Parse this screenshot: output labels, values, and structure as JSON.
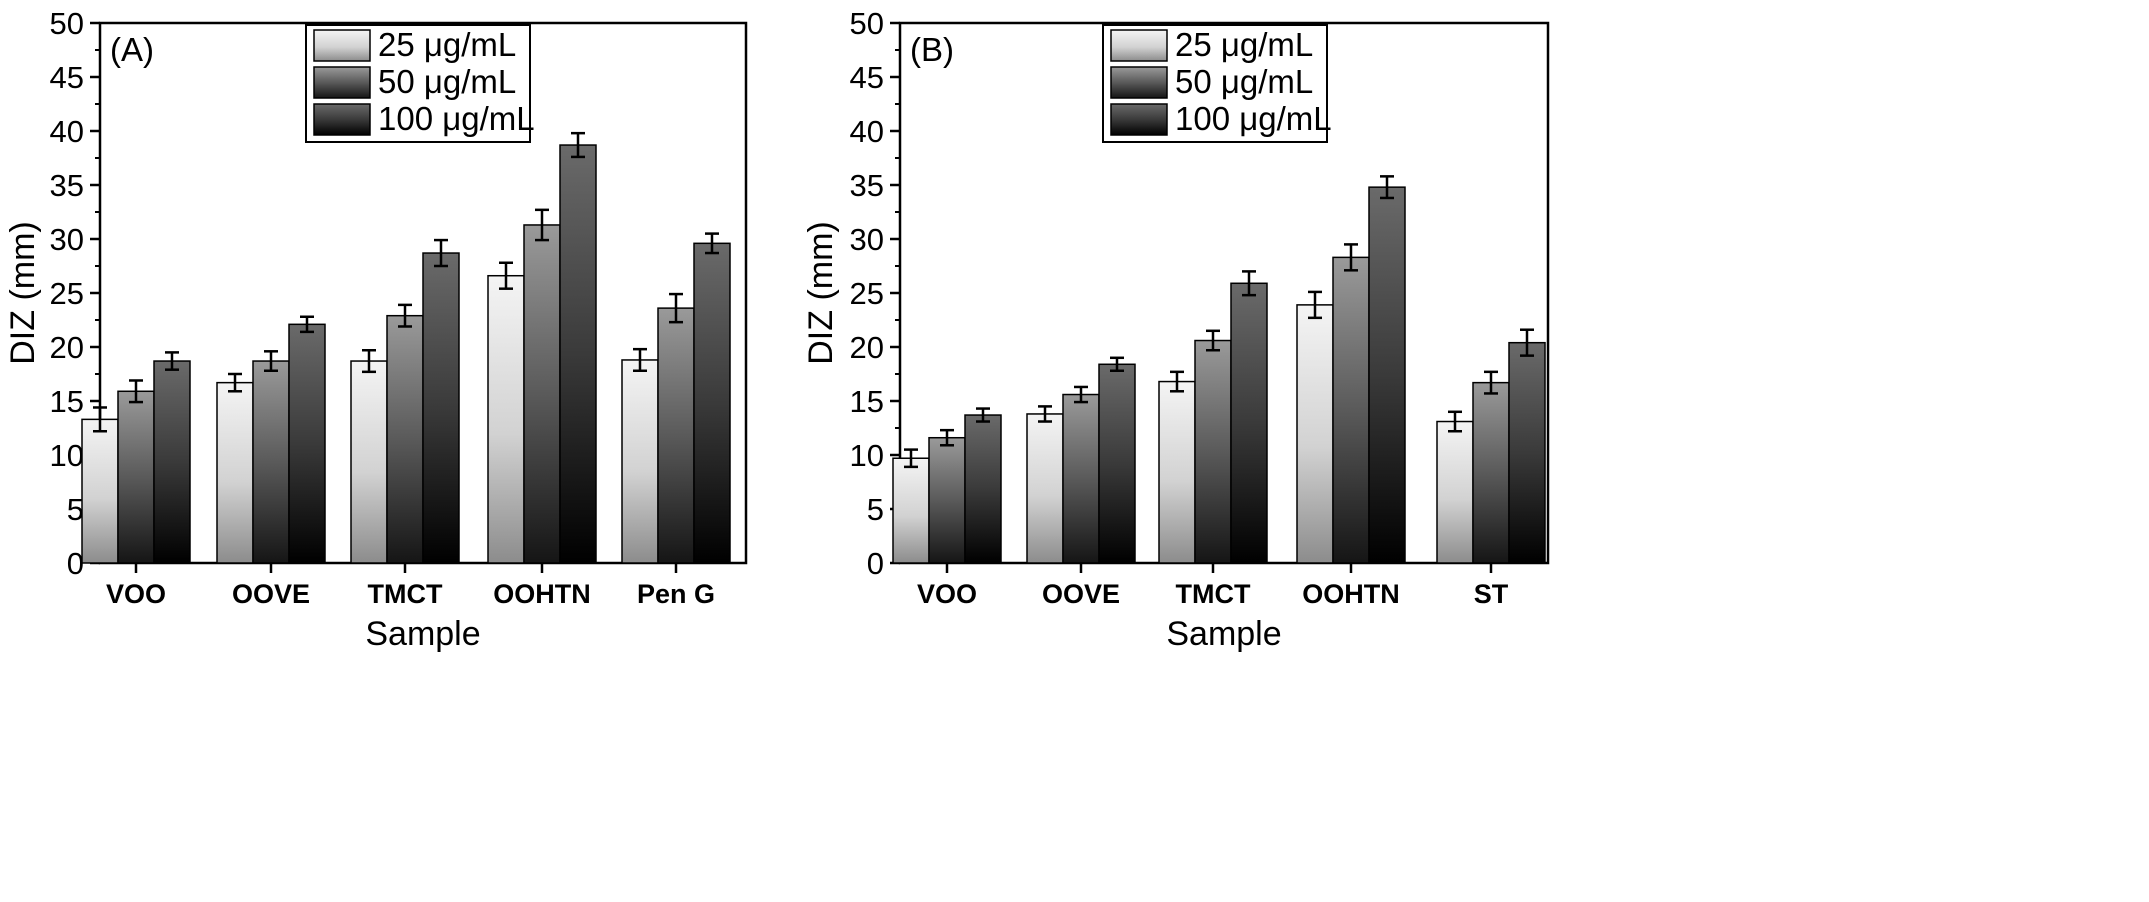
{
  "colors": {
    "axis": "#000000",
    "bar_light_top": "#f2f2f2",
    "bar_dark_bottom": "#000000"
  },
  "legend": [
    "25 μg/mL",
    "50 μg/mL",
    "100 μg/mL"
  ],
  "chart_data": [
    {
      "panel": "(A)",
      "type": "bar",
      "xlabel": "Sample",
      "ylabel": "DIZ (mm)",
      "ylim": [
        0,
        50
      ],
      "yticks": [
        0,
        5,
        10,
        15,
        20,
        25,
        30,
        35,
        40,
        45,
        50
      ],
      "categories": [
        "VOO",
        "OOVE",
        "TMCT",
        "OOHTN",
        "Pen G"
      ],
      "legend_position": "top-center",
      "series": [
        {
          "name": "25 μg/mL",
          "values": [
            13.3,
            16.7,
            18.7,
            26.6,
            18.8
          ],
          "errors": [
            1.1,
            0.8,
            1.0,
            1.2,
            1.0
          ]
        },
        {
          "name": "50 μg/mL",
          "values": [
            15.9,
            18.7,
            22.9,
            31.3,
            23.6
          ],
          "errors": [
            1.0,
            0.9,
            1.0,
            1.4,
            1.3
          ]
        },
        {
          "name": "100 μg/mL",
          "values": [
            18.7,
            22.1,
            28.7,
            38.7,
            29.6
          ],
          "errors": [
            0.8,
            0.7,
            1.2,
            1.1,
            0.9
          ]
        }
      ]
    },
    {
      "panel": "(B)",
      "type": "bar",
      "xlabel": "Sample",
      "ylabel": "DIZ (mm)",
      "ylim": [
        0,
        50
      ],
      "yticks": [
        0,
        5,
        10,
        15,
        20,
        25,
        30,
        35,
        40,
        45,
        50
      ],
      "categories": [
        "VOO",
        "OOVE",
        "TMCT",
        "OOHTN",
        "ST"
      ],
      "legend_position": "top-center",
      "series": [
        {
          "name": "25 μg/mL",
          "values": [
            9.7,
            13.8,
            16.8,
            23.9,
            13.1
          ],
          "errors": [
            0.8,
            0.7,
            0.9,
            1.2,
            0.9
          ]
        },
        {
          "name": "50 μg/mL",
          "values": [
            11.6,
            15.6,
            20.6,
            28.3,
            16.7
          ],
          "errors": [
            0.7,
            0.7,
            0.9,
            1.2,
            1.0
          ]
        },
        {
          "name": "100 μg/mL",
          "values": [
            13.7,
            18.4,
            25.9,
            34.8,
            20.4
          ],
          "errors": [
            0.6,
            0.6,
            1.1,
            1.0,
            1.2
          ]
        }
      ]
    }
  ]
}
